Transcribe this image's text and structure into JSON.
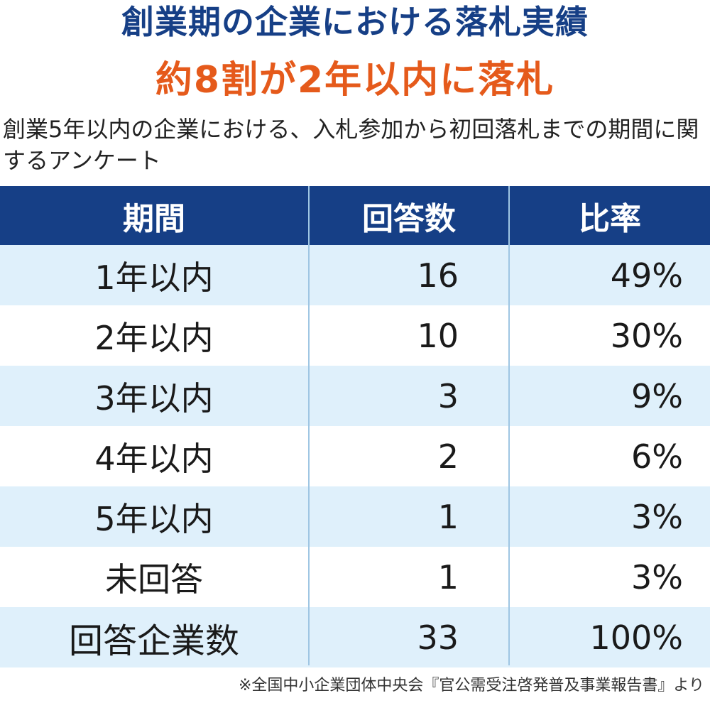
{
  "title": "創業期の企業における落札実績",
  "subtitle": "約8割が2年以内に落札",
  "description": "創業5年以内の企業における、入札参加から初回落札までの期間に関するアンケート",
  "colors": {
    "title": "#163f86",
    "subtitle": "#e55a1b",
    "header_bg": "#163f86",
    "row_shade": "#dff0fb"
  },
  "chart_data": {
    "type": "table",
    "columns": [
      "期間",
      "回答数",
      "比率"
    ],
    "rows": [
      {
        "period": "1年以内",
        "count": "16",
        "ratio": "49%"
      },
      {
        "period": "2年以内",
        "count": "10",
        "ratio": "30%"
      },
      {
        "period": "3年以内",
        "count": "3",
        "ratio": "9%"
      },
      {
        "period": "4年以内",
        "count": "2",
        "ratio": "6%"
      },
      {
        "period": "5年以内",
        "count": "1",
        "ratio": "3%"
      },
      {
        "period": "未回答",
        "count": "1",
        "ratio": "3%"
      },
      {
        "period": "回答企業数",
        "count": "33",
        "ratio": "100%"
      }
    ]
  },
  "source": "※全国中小企業団体中央会『官公需受注啓発普及事業報告書』より"
}
